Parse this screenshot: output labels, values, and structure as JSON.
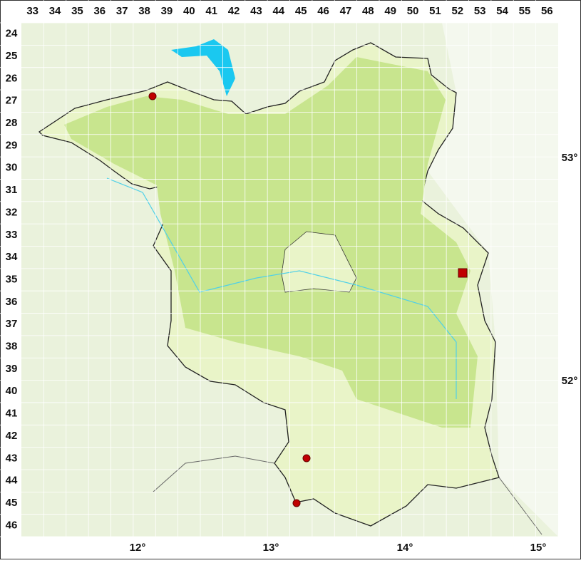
{
  "grid": {
    "columns": [
      "33",
      "34",
      "35",
      "36",
      "37",
      "38",
      "39",
      "40",
      "41",
      "42",
      "43",
      "44",
      "45",
      "46",
      "47",
      "48",
      "49",
      "50",
      "51",
      "52",
      "53",
      "54",
      "55",
      "56"
    ],
    "rows": [
      "24",
      "25",
      "26",
      "27",
      "28",
      "29",
      "30",
      "31",
      "32",
      "33",
      "34",
      "35",
      "36",
      "37",
      "38",
      "39",
      "40",
      "41",
      "42",
      "43",
      "44",
      "45",
      "46"
    ]
  },
  "longitudes": [
    "12°",
    "13°",
    "14°",
    "15°"
  ],
  "latitudes": [
    "53°",
    "52°"
  ]
}
